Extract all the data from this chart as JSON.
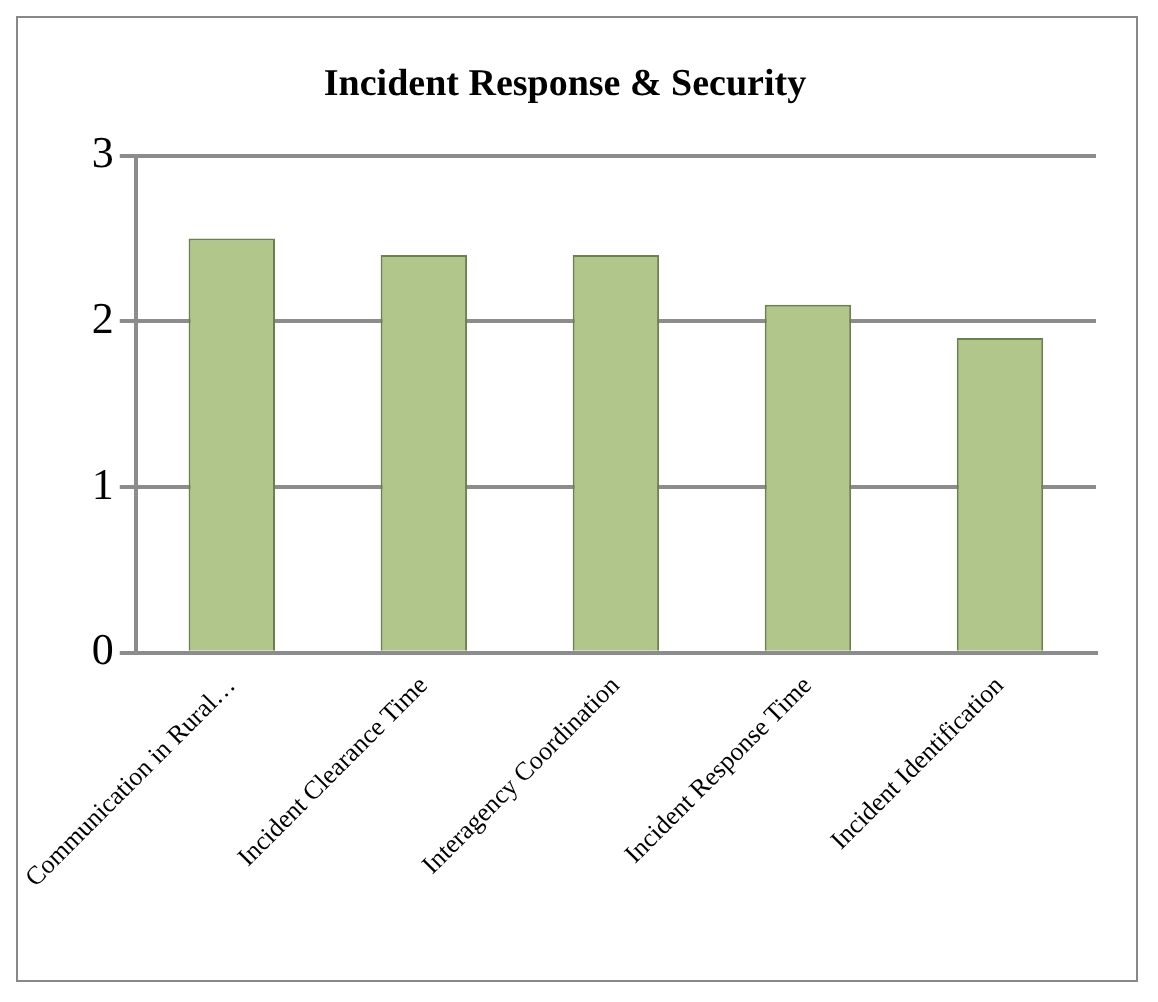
{
  "chart_data": {
    "type": "bar",
    "title": "Incident Response & Security",
    "categories": [
      "Communication in Rural…",
      "Incident Clearance Time",
      "Interagency Coordination",
      "Incident Response Time",
      "Incident Identification"
    ],
    "values": [
      2.5,
      2.4,
      2.4,
      2.1,
      1.9
    ],
    "color": "#b0c68a",
    "ylim": [
      0,
      3
    ],
    "yticks": [
      0,
      1,
      2,
      3
    ],
    "grid": "y",
    "legend": false
  }
}
